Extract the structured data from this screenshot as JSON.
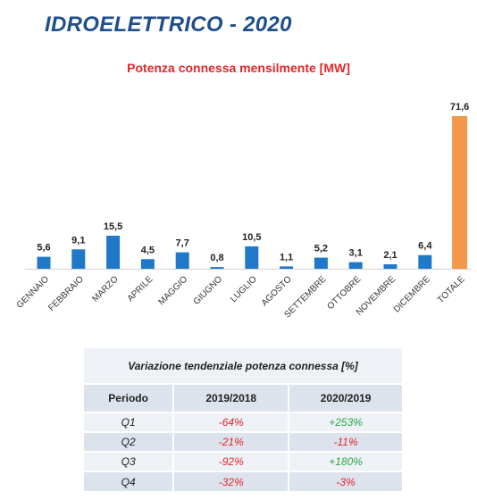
{
  "page_title": "IDROELETTRICO - 2020",
  "chart_data": {
    "type": "bar",
    "title": "Potenza connessa mensilmente [MW]",
    "categories": [
      "GENNAIO",
      "FEBBRAIO",
      "MARZO",
      "APRILE",
      "MAGGIO",
      "GIUGNO",
      "LUGLIO",
      "AGOSTO",
      "SETTEMBRE",
      "OTTOBRE",
      "NOVEMBRE",
      "DICEMBRE",
      "TOTALE"
    ],
    "values": [
      5.6,
      9.1,
      15.5,
      4.5,
      7.7,
      0.8,
      10.5,
      1.1,
      5.2,
      3.1,
      2.1,
      6.4,
      71.6
    ],
    "labels": [
      "5,6",
      "9,1",
      "15,5",
      "4,5",
      "7,7",
      "0,8",
      "10,5",
      "1,1",
      "5,2",
      "3,1",
      "2,1",
      "6,4",
      "71,6"
    ],
    "xlabel": "",
    "ylabel": "",
    "ylim": [
      0,
      71.6
    ],
    "grid": false,
    "colors": {
      "month": "#1f78c8",
      "total": "#f5974a"
    }
  },
  "table": {
    "caption": "Variazione tendenziale potenza connessa [%]",
    "headers": [
      "Periodo",
      "2019/2018",
      "2020/2019"
    ],
    "rows": [
      {
        "period": "Q1",
        "v1": "-64%",
        "v2": "+253%"
      },
      {
        "period": "Q2",
        "v1": "-21%",
        "v2": "-11%"
      },
      {
        "period": "Q3",
        "v1": "-92%",
        "v2": "+180%"
      },
      {
        "period": "Q4",
        "v1": "-32%",
        "v2": "-3%"
      }
    ],
    "colors": {
      "negative": "#e3262b",
      "positive": "#27a844"
    }
  }
}
